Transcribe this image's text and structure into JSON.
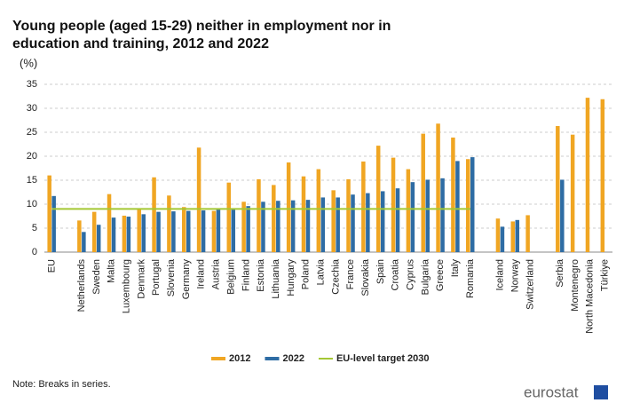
{
  "chart_data": {
    "type": "bar",
    "title": [
      "Young people (aged 15-29) neither in employment nor in",
      "education and training, 2012 and 2022"
    ],
    "subtitle": "(%)",
    "categories": [
      "EU",
      null,
      "Netherlands",
      "Sweden",
      "Malta",
      "Luxembourg",
      "Denmark",
      "Portugal",
      "Slovenia",
      "Germany",
      "Ireland",
      "Austria",
      "Belgium",
      "Finland",
      "Estonia",
      "Lithuania",
      "Hungary",
      "Poland",
      "Latvia",
      "Czechia",
      "France",
      "Slovakia",
      "Spain",
      "Croatia",
      "Cyprus",
      "Bulgaria",
      "Greece",
      "Italy",
      "Romania",
      null,
      "Iceland",
      "Norway",
      "Switzerland",
      null,
      "Serbia",
      "Montenegro",
      "North Macedonia",
      "Türkiye"
    ],
    "series": [
      {
        "name": "2012",
        "color": "#f0a623",
        "values": [
          16.0,
          null,
          6.6,
          8.4,
          12.1,
          7.6,
          9.1,
          15.6,
          11.8,
          9.4,
          21.8,
          8.6,
          14.5,
          10.5,
          15.2,
          14.0,
          18.7,
          15.8,
          17.3,
          12.9,
          15.2,
          18.9,
          22.2,
          19.7,
          17.3,
          24.7,
          26.8,
          23.9,
          19.4,
          null,
          7.0,
          6.4,
          7.7,
          null,
          26.3,
          24.5,
          32.2,
          31.9
        ]
      },
      {
        "name": "2022",
        "color": "#2e6ca4",
        "values": [
          11.7,
          null,
          4.2,
          5.7,
          7.2,
          7.4,
          7.9,
          8.4,
          8.5,
          8.6,
          8.7,
          8.9,
          9.0,
          9.6,
          10.5,
          10.7,
          10.8,
          10.9,
          11.4,
          11.4,
          12.0,
          12.3,
          12.7,
          13.3,
          14.6,
          15.1,
          15.4,
          19.0,
          19.8,
          null,
          5.3,
          6.7,
          null,
          null,
          15.1,
          null,
          null,
          null
        ]
      },
      {
        "name": "EU-level target 2030",
        "color": "#a4c734",
        "type": "line",
        "values": [
          9,
          9,
          9,
          9,
          9,
          9,
          9,
          9,
          9,
          9,
          9,
          9,
          9,
          9,
          9,
          9,
          9,
          9,
          9,
          9,
          9,
          9,
          9,
          9,
          9,
          9,
          9,
          9,
          9,
          null,
          null,
          null,
          null,
          null,
          null,
          null,
          null,
          null
        ]
      }
    ],
    "ylim": [
      0,
      35
    ],
    "yticks": [
      0,
      5,
      10,
      15,
      20,
      25,
      30,
      35
    ],
    "grid": true,
    "legend": "bottom",
    "note": "Note: Breaks in series.",
    "logo": "eurostat"
  }
}
